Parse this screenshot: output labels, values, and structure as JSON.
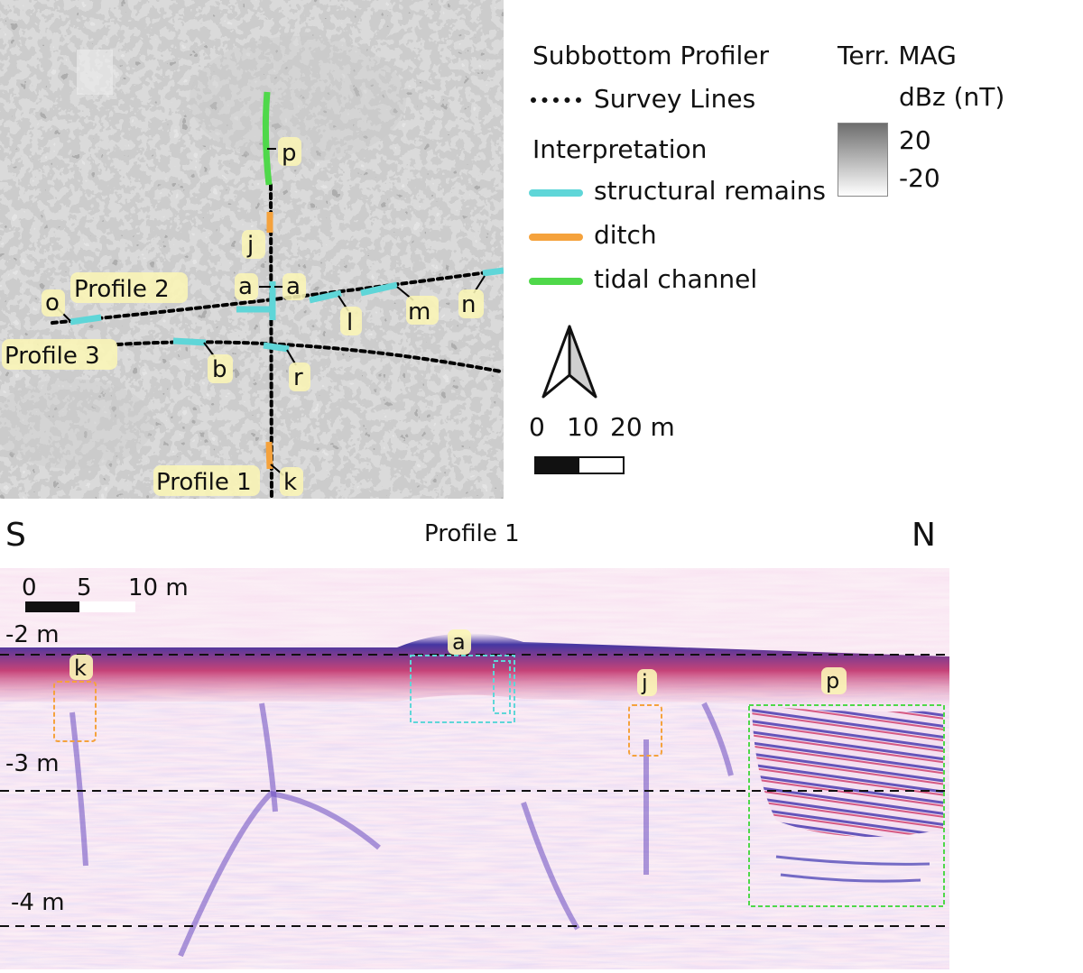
{
  "map": {
    "profile_labels": [
      "Profile 2",
      "Profile 3",
      "Profile 1"
    ],
    "feature_labels": [
      "p",
      "j",
      "a",
      "a",
      "o",
      "l",
      "m",
      "n",
      "b",
      "r",
      "k"
    ]
  },
  "legend": {
    "subbottom_title": "Subbottom Profiler",
    "survey_lines": "Survey Lines",
    "interpretation_title": "Interpretation",
    "items": [
      {
        "label": "structural remains",
        "color": "#5fd6d8"
      },
      {
        "label": "ditch",
        "color": "#f5a23c"
      },
      {
        "label": "tidal channel",
        "color": "#4fd84a"
      }
    ],
    "mag_title": "Terr. MAG",
    "mag_unit": "dBz (nT)",
    "mag_max": "20",
    "mag_min": "-20",
    "north_arrow": "north-arrow-icon",
    "scale_labels": [
      "0",
      "10",
      "20 m"
    ]
  },
  "profile": {
    "title": "Profile 1",
    "left_dir": "S",
    "right_dir": "N",
    "scale_labels": [
      "0",
      "5",
      "10 m"
    ],
    "depth_labels": [
      "-2 m",
      "-3 m",
      "-4 m"
    ],
    "feature_labels": [
      "a",
      "k",
      "j",
      "p"
    ],
    "box_colors": {
      "ditch": "#f5a23c",
      "structural": "#5fd6d8",
      "tidal": "#4fd84a"
    }
  }
}
